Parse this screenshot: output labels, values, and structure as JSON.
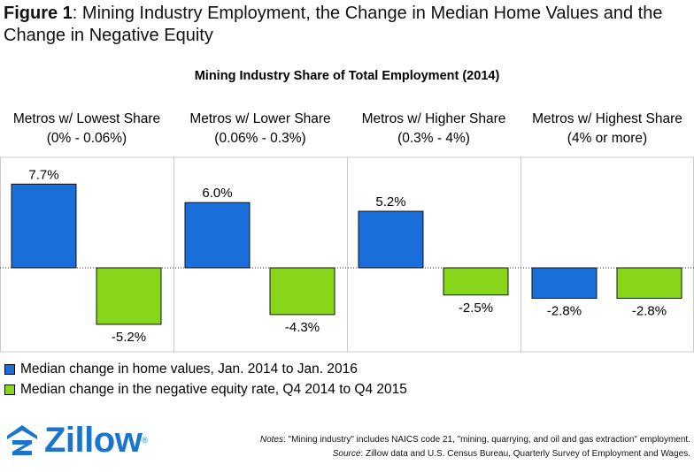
{
  "figure": {
    "label": "Figure 1",
    "title_rest": ": Mining Industry Employment, the Change in Median Home Values and the Change in Negative Equity"
  },
  "colors": {
    "blue": "#1a6fdb",
    "green": "#88d61a",
    "border": "#c8c8c8",
    "text": "#000000"
  },
  "chart_data": {
    "type": "bar",
    "title": "Mining Industry Share of Total Employment (2014)",
    "groups": [
      {
        "name": "Metros w/ Lowest Share",
        "range": "(0% - 0.06%)"
      },
      {
        "name": "Metros w/ Lower Share",
        "range": "(0.06% - 0.3%)"
      },
      {
        "name": "Metros w/ Higher Share",
        "range": "(0.3% - 4%)"
      },
      {
        "name": "Metros w/ Highest Share",
        "range": "(4% or more)"
      }
    ],
    "series": [
      {
        "name": "Median change in home values, Jan. 2014 to Jan. 2016",
        "color": "#1a6fdb",
        "values": [
          7.7,
          6.0,
          5.2,
          -2.8
        ],
        "labels": [
          "7.7%",
          "6.0%",
          "5.2%",
          "-2.8%"
        ]
      },
      {
        "name": "Median change in the negative equity rate, Q4 2014 to Q4 2015",
        "color": "#88d61a",
        "values": [
          -5.2,
          -4.3,
          -2.5,
          -2.8
        ],
        "labels": [
          "-5.2%",
          "-4.3%",
          "-2.5%",
          "-2.8%"
        ]
      }
    ],
    "ylim": [
      -8,
      8
    ],
    "grid": false,
    "legend_position": "bottom-left"
  },
  "logo": {
    "name": "Zillow",
    "icon": "zillow-z-house-icon"
  },
  "notes": {
    "notes_label": "Notes",
    "notes_text": ": \"Mining industry\" includes NAICS code 21, \"mining, quarrying, and oil and gas extraction\" employment.",
    "source_label": "Source",
    "source_text": ": Zillow data and U.S. Census Bureau, Quarterly Survey of Employment and Wages."
  }
}
